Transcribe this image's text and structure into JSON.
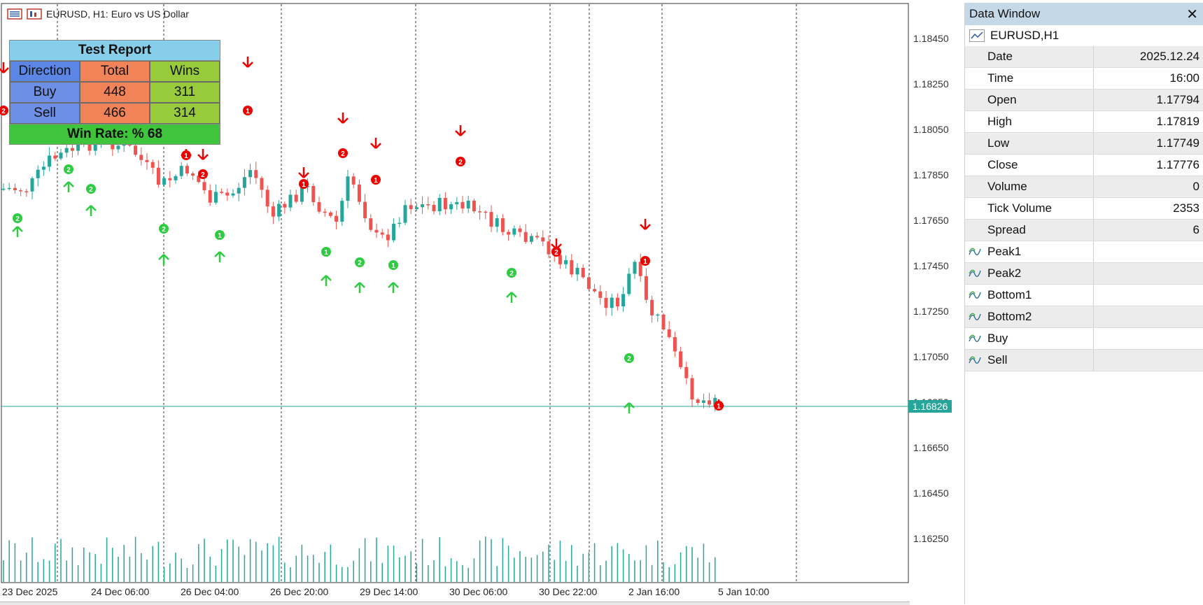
{
  "window": {
    "symbol": "EURUSD, H1:",
    "description": "Euro vs US Dollar"
  },
  "report": {
    "title": "Test Report",
    "headers": [
      "Direction",
      "Total",
      "Wins"
    ],
    "rows": [
      {
        "direction": "Buy",
        "total": "448",
        "wins": "311"
      },
      {
        "direction": "Sell",
        "total": "466",
        "wins": "314"
      }
    ],
    "win_rate": "Win Rate: %  68"
  },
  "price_axis": {
    "labels": [
      "1.18450",
      "1.18250",
      "1.18050",
      "1.17850",
      "1.17650",
      "1.17450",
      "1.17250",
      "1.17050",
      "1.16850",
      "1.16650",
      "1.16450",
      "1.16250"
    ],
    "current_price": "1.16826",
    "current_price_color": "#26a69a"
  },
  "time_axis": {
    "labels": [
      "23 Dec 2025",
      "24 Dec 06:00",
      "26 Dec 04:00",
      "26 Dec 20:00",
      "29 Dec 14:00",
      "30 Dec 06:00",
      "30 Dec 22:00",
      "2 Jan 16:00",
      "5 Jan 10:00"
    ]
  },
  "colors": {
    "bull": "#26a69a",
    "bear": "#ef5350",
    "buy_signal": "#2ecc40",
    "sell_signal": "#ee0000"
  },
  "data_window": {
    "title": "Data Window",
    "close_icon": "close-icon",
    "symbol_row": "EURUSD,H1",
    "fields": [
      {
        "name": "Date",
        "value": "2025.12.24"
      },
      {
        "name": "Time",
        "value": "16:00"
      },
      {
        "name": "Open",
        "value": "1.17794"
      },
      {
        "name": "High",
        "value": "1.17819"
      },
      {
        "name": "Low",
        "value": "1.17749"
      },
      {
        "name": "Close",
        "value": "1.17776"
      },
      {
        "name": "Volume",
        "value": "0"
      },
      {
        "name": "Tick Volume",
        "value": "2353"
      },
      {
        "name": "Spread",
        "value": "6"
      }
    ],
    "indicators": [
      {
        "name": "Peak1",
        "value": ""
      },
      {
        "name": "Peak2",
        "value": ""
      },
      {
        "name": "Bottom1",
        "value": ""
      },
      {
        "name": "Bottom2",
        "value": ""
      },
      {
        "name": "Buy",
        "value": ""
      },
      {
        "name": "Sell",
        "value": ""
      }
    ]
  }
}
